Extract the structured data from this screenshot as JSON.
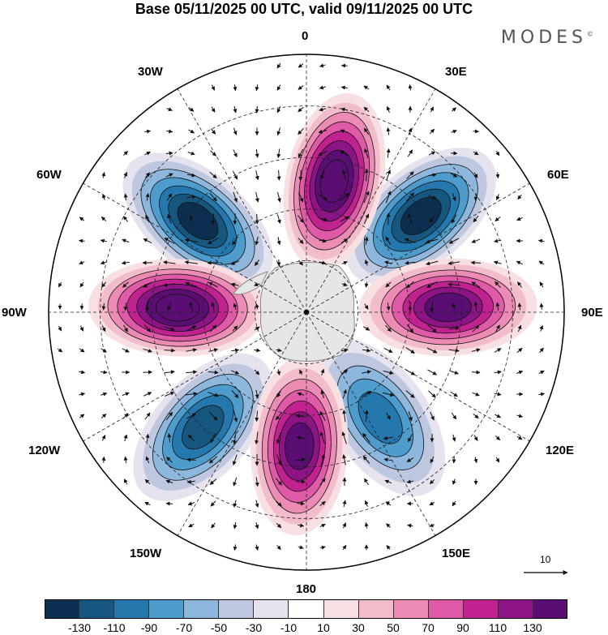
{
  "title": "Base 05/11/2025 00 UTC, valid 09/11/2025 00 UTC",
  "brand": "MODES",
  "brand_mark": "©",
  "longitude_labels": {
    "n": "0",
    "ne": "30E",
    "e1": "60E",
    "e": "90E",
    "se1": "120E",
    "se": "150E",
    "s": "180",
    "sw": "150W",
    "w1": "120W",
    "w": "90W",
    "nw1": "60W",
    "nw": "30W"
  },
  "reference_vector": {
    "label": "10"
  },
  "colorbar": {
    "colors": [
      "#0d2f4f",
      "#17577f",
      "#2478ad",
      "#4e9ccb",
      "#8db7dd",
      "#bdc8e0",
      "#e6e3ef",
      "#ffffff",
      "#f7dfe2",
      "#f3bccb",
      "#ec8cb4",
      "#df5aa7",
      "#c0238f",
      "#8c1485",
      "#5a0e74"
    ],
    "ticks": [
      "-130",
      "-110",
      "-90",
      "-70",
      "-50",
      "-30",
      "-10",
      "10",
      "30",
      "50",
      "70",
      "90",
      "110",
      "130"
    ]
  },
  "anomaly_centers": [
    {
      "sign": "negative",
      "bearing_deg": 310,
      "distance": 0.55,
      "level": 6
    },
    {
      "sign": "negative",
      "bearing_deg": 50,
      "distance": 0.58,
      "level": 6
    },
    {
      "sign": "negative",
      "bearing_deg": 222,
      "distance": 0.6,
      "level": 5
    },
    {
      "sign": "negative",
      "bearing_deg": 145,
      "distance": 0.5,
      "level": 4
    },
    {
      "sign": "positive",
      "bearing_deg": 12,
      "distance": 0.52,
      "level": 7
    },
    {
      "sign": "positive",
      "bearing_deg": 272,
      "distance": 0.5,
      "level": 7
    },
    {
      "sign": "positive",
      "bearing_deg": 88,
      "distance": 0.55,
      "level": 6
    },
    {
      "sign": "positive",
      "bearing_deg": 183,
      "distance": 0.52,
      "level": 6
    }
  ]
}
